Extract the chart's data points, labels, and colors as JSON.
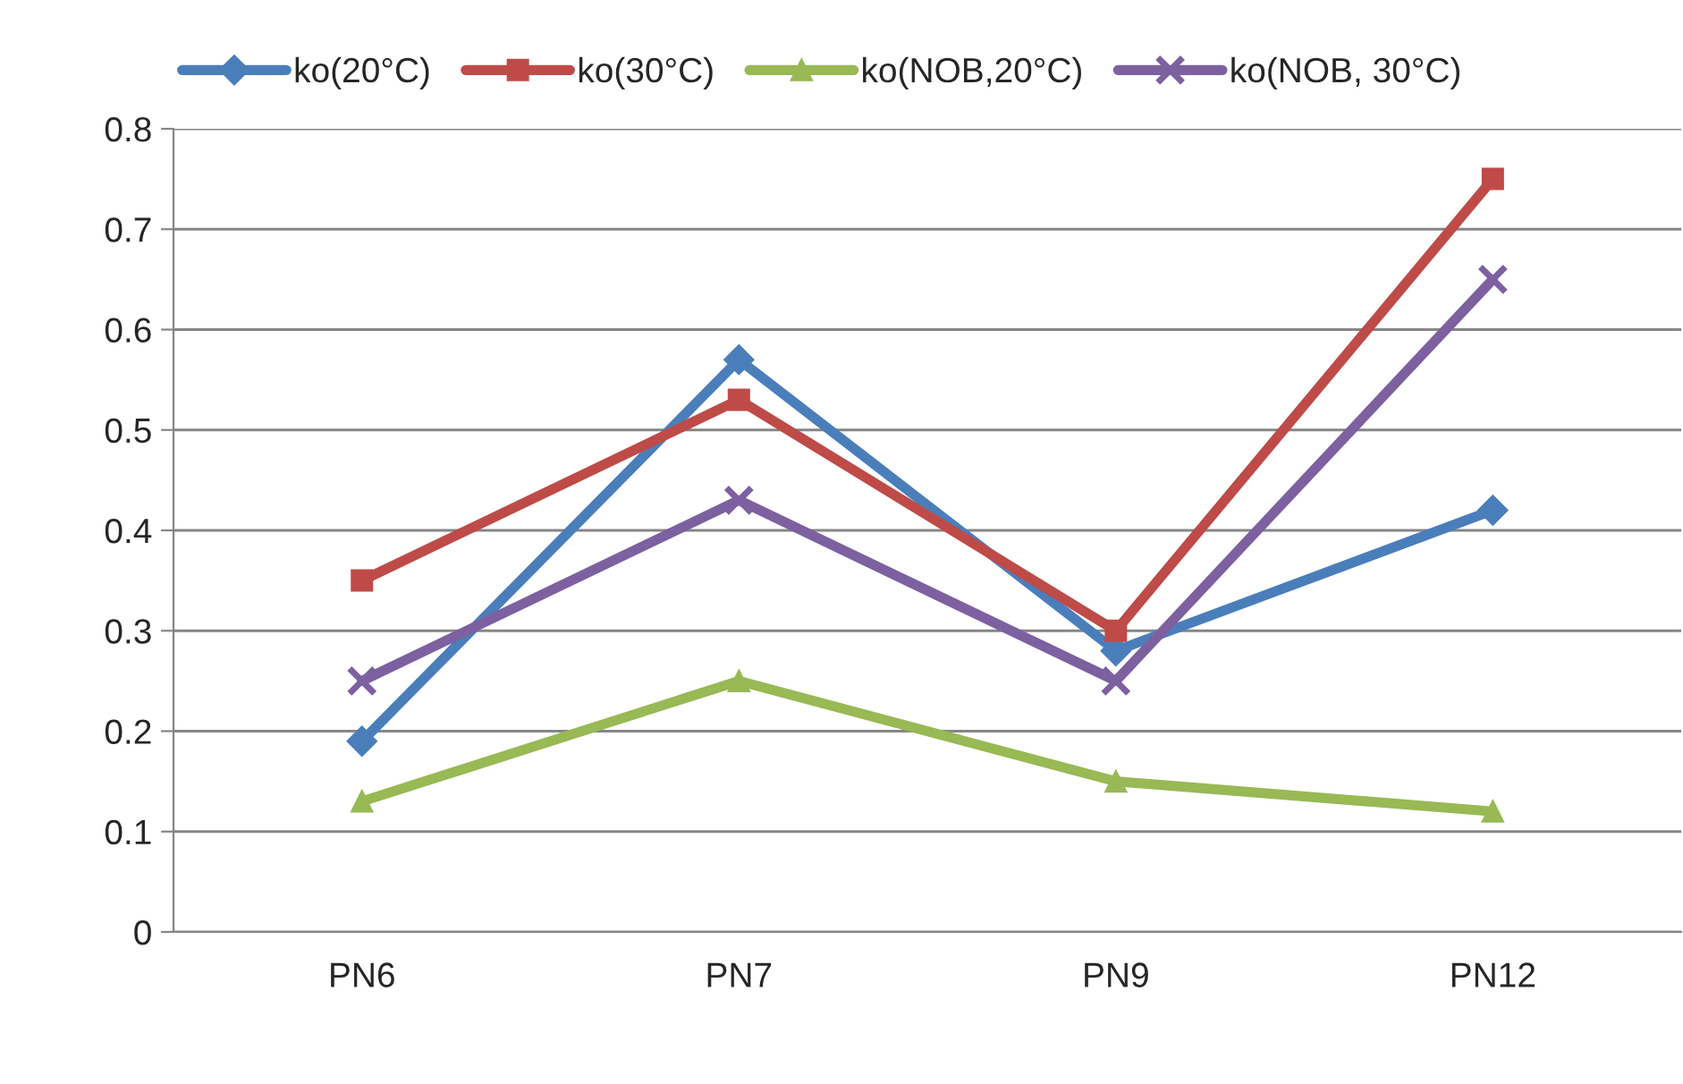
{
  "chart_data": {
    "type": "line",
    "categories": [
      "PN6",
      "PN7",
      "PN9",
      "PN12"
    ],
    "series": [
      {
        "name": "ko(20°C)",
        "color": "#4a7ebb",
        "marker": "diamond",
        "values": [
          0.19,
          0.57,
          0.28,
          0.42
        ]
      },
      {
        "name": "ko(30°C)",
        "color": "#be4b48",
        "marker": "square",
        "values": [
          0.35,
          0.53,
          0.3,
          0.75
        ]
      },
      {
        "name": "ko(NOB,20°C)",
        "color": "#98b954",
        "marker": "triangle",
        "values": [
          0.13,
          0.25,
          0.15,
          0.12
        ]
      },
      {
        "name": "ko(NOB, 30°C)",
        "color": "#7d60a0",
        "marker": "cross",
        "values": [
          0.25,
          0.43,
          0.25,
          0.65
        ]
      }
    ],
    "ylim": [
      0,
      0.8
    ],
    "yticks": [
      {
        "value": 0,
        "label": "0"
      },
      0.1,
      0.2,
      0.3,
      0.4,
      0.5,
      0.6,
      0.7,
      0.8
    ],
    "grid": "y",
    "legend": "top",
    "line_style": "solid"
  }
}
